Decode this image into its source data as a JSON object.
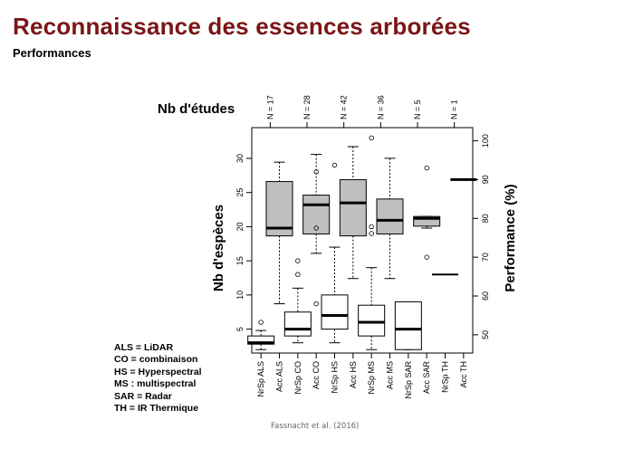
{
  "slide": {
    "title": "Reconnaissance des essences arborées",
    "subtitle": "Performances"
  },
  "legend": [
    "ALS = LiDAR",
    "CO = combinaison",
    "HS = Hyperspectral",
    "MS : multispectral",
    "SAR = Radar",
    "TH = IR Thermique"
  ],
  "citation": "Fassnacht et al. (2016)",
  "chart_data": {
    "type": "boxplot",
    "top_axis_title": "Nb d'études",
    "left_axis_title": "Nb d'espèces",
    "right_axis_title": "Performance (%)",
    "left_axis": {
      "ylim": [
        1.5,
        34.5
      ],
      "ticks": [
        5,
        10,
        15,
        20,
        25,
        30
      ]
    },
    "right_axis": {
      "ylim": [
        45.3,
        103.4
      ],
      "ticks": [
        50,
        60,
        70,
        80,
        90,
        100
      ]
    },
    "grid": false,
    "colors": {
      "species_box": "#ffffff",
      "accuracy_box": "#bfbfbf",
      "title": "#7a1517"
    },
    "categories": [
      "NrSp ALS",
      "Acc ALS",
      "NrSp CO",
      "Acc CO",
      "NrSp HS",
      "Acc HS",
      "NrSp MS",
      "Acc MS",
      "NrSp SAR",
      "Acc SAR",
      "NrSp TH",
      "Acc TH"
    ],
    "group_counts": [
      "N = 17",
      "N = 28",
      "N = 42",
      "N = 36",
      "N = 5",
      "N = 1"
    ],
    "series": [
      {
        "category": "NrSp ALS",
        "axis": "left",
        "min": 2,
        "q1": 2.8,
        "median": 3,
        "q3": 4,
        "max": 4.8,
        "outliers": [
          6
        ]
      },
      {
        "category": "Acc ALS",
        "axis": "right",
        "min": 58,
        "q1": 75.5,
        "median": 77.5,
        "q3": 89.5,
        "max": 94.5,
        "outliers": []
      },
      {
        "category": "NrSp CO",
        "axis": "left",
        "min": 3,
        "q1": 4,
        "median": 5,
        "q3": 7.5,
        "max": 11,
        "outliers": [
          13,
          15
        ]
      },
      {
        "category": "Acc CO",
        "axis": "right",
        "min": 71,
        "q1": 76,
        "median": 83.5,
        "q3": 86,
        "max": 96.5,
        "outliers": [
          58,
          77.5,
          92
        ]
      },
      {
        "category": "NrSp HS",
        "axis": "left",
        "min": 3,
        "q1": 5,
        "median": 7,
        "q3": 10,
        "max": 17,
        "outliers": [
          29
        ]
      },
      {
        "category": "Acc HS",
        "axis": "right",
        "min": 64.5,
        "q1": 75.5,
        "median": 84,
        "q3": 90,
        "max": 98.5,
        "outliers": []
      },
      {
        "category": "NrSp MS",
        "axis": "left",
        "min": 2,
        "q1": 4,
        "median": 6,
        "q3": 8.5,
        "max": 14,
        "outliers": [
          19,
          20,
          33
        ]
      },
      {
        "category": "Acc MS",
        "axis": "right",
        "min": 64.5,
        "q1": 76,
        "median": 79.5,
        "q3": 85,
        "max": 95.5,
        "outliers": []
      },
      {
        "category": "NrSp SAR",
        "axis": "left",
        "min": 2,
        "q1": 2,
        "median": 5,
        "q3": 9,
        "max": 9,
        "outliers": []
      },
      {
        "category": "Acc SAR",
        "axis": "right",
        "min": 77.5,
        "q1": 78,
        "median": 80,
        "q3": 80.5,
        "max": 80.5,
        "outliers": [
          70,
          93
        ]
      },
      {
        "category": "NrSp TH",
        "axis": "left",
        "min": 13,
        "q1": 13,
        "median": 13,
        "q3": 13,
        "max": 13,
        "outliers": []
      },
      {
        "category": "Acc TH",
        "axis": "right",
        "min": 90,
        "q1": 90,
        "median": 90,
        "q3": 90,
        "max": 90,
        "outliers": []
      }
    ]
  }
}
